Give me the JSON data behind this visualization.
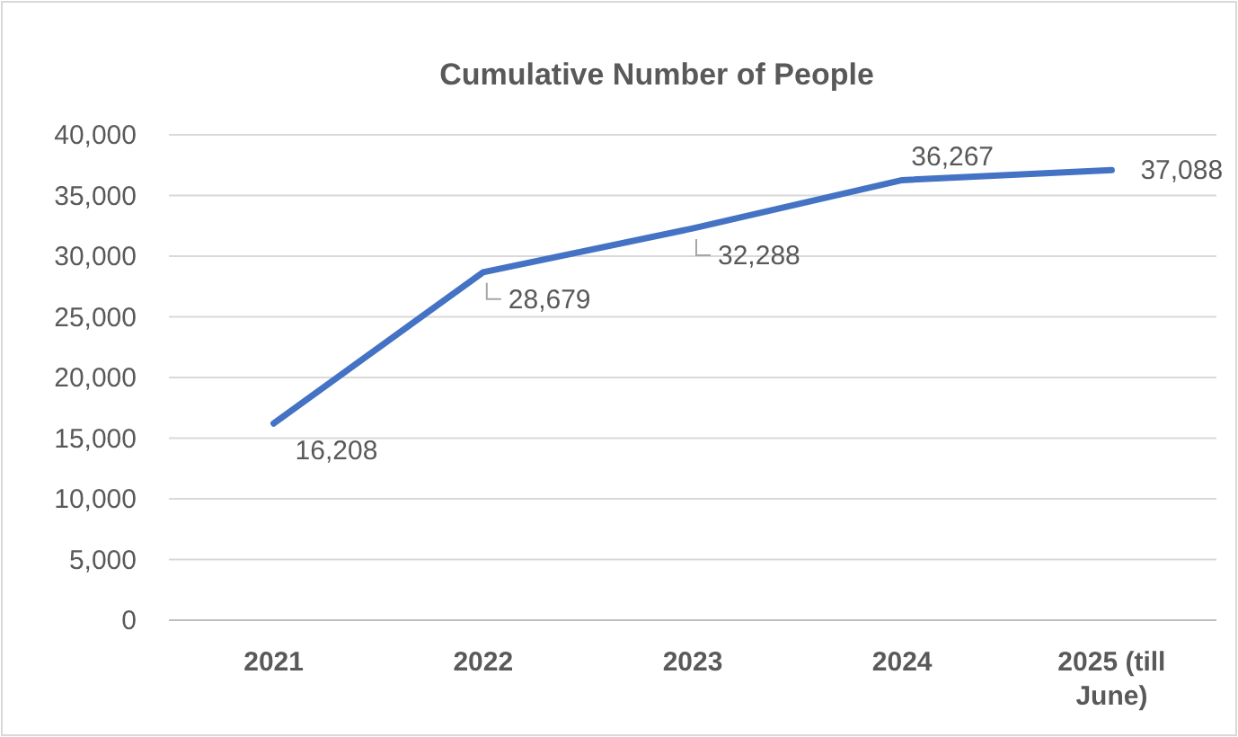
{
  "chart_data": {
    "type": "line",
    "title": "Cumulative Number of People",
    "categories": [
      "2021",
      "2022",
      "2023",
      "2024",
      "2025 (till June)"
    ],
    "series": [
      {
        "color": "#4472c4",
        "values": [
          16208,
          28679,
          32288,
          36267,
          37088
        ],
        "value_labels": [
          "16,208",
          "28,679",
          "32,288",
          "36,267",
          "37,088"
        ]
      }
    ],
    "ylim": [
      0,
      40000
    ],
    "yticks": [
      {
        "value": 0,
        "label": "0"
      },
      {
        "value": 5000,
        "label": "5,000"
      },
      {
        "value": 10000,
        "label": "10,000"
      },
      {
        "value": 15000,
        "label": "15,000"
      },
      {
        "value": 20000,
        "label": "20,000"
      },
      {
        "value": 25000,
        "label": "25,000"
      },
      {
        "value": 30000,
        "label": "30,000"
      },
      {
        "value": 35000,
        "label": "35,000"
      },
      {
        "value": 40000,
        "label": "40,000"
      }
    ],
    "grid": "y",
    "marker": "none",
    "line_style": "solid"
  }
}
